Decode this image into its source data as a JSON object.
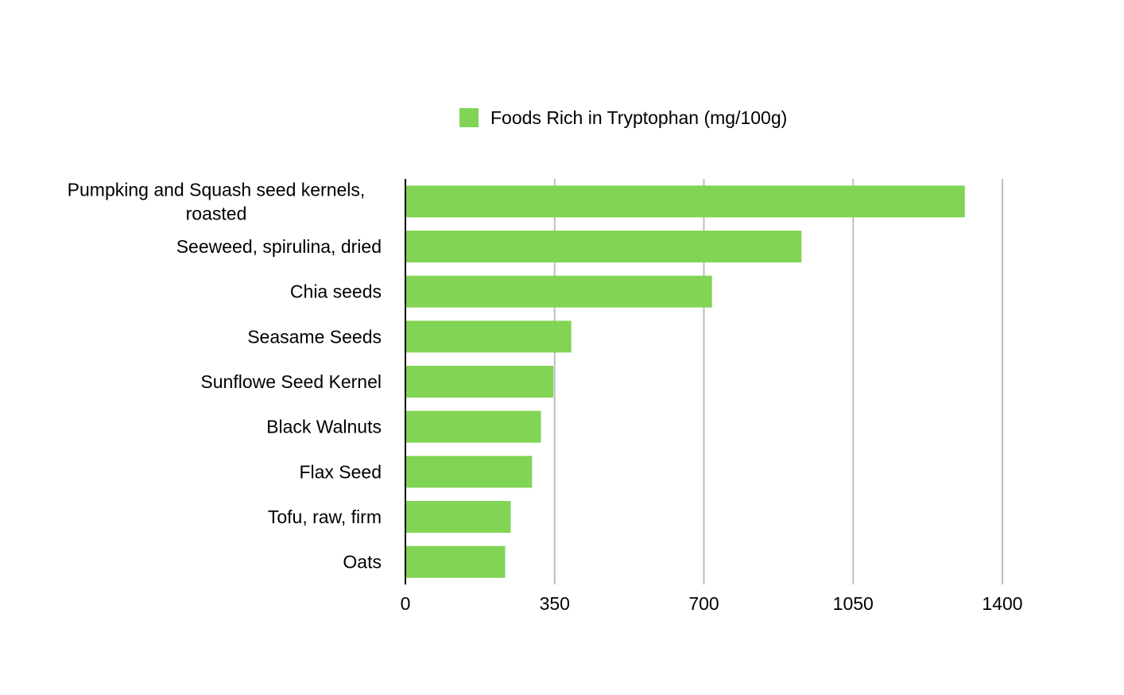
{
  "chart_data": {
    "type": "bar",
    "orientation": "horizontal",
    "categories": [
      "Pumpking and Squash seed kernels, roasted",
      "Seeweed, spirulina, dried",
      "Chia seeds",
      "Seasame Seeds",
      "Sunflowe Seed Kernel",
      "Black Walnuts",
      "Flax Seed",
      "Tofu, raw, firm",
      "Oats"
    ],
    "series": [
      {
        "name": "Foods Rich in Tryptophan (mg/100g)",
        "color": "#82d455",
        "values": [
          1312,
          929,
          719,
          389,
          347,
          318,
          297,
          247,
          234
        ]
      }
    ],
    "xlim": [
      0,
      1400
    ],
    "xticks": [
      "0",
      "350",
      "700",
      "1050",
      "1400"
    ],
    "xlabel": "",
    "ylabel": "",
    "grid": true,
    "grid_color": "#bdbdbd",
    "legend_position": "top-center"
  }
}
